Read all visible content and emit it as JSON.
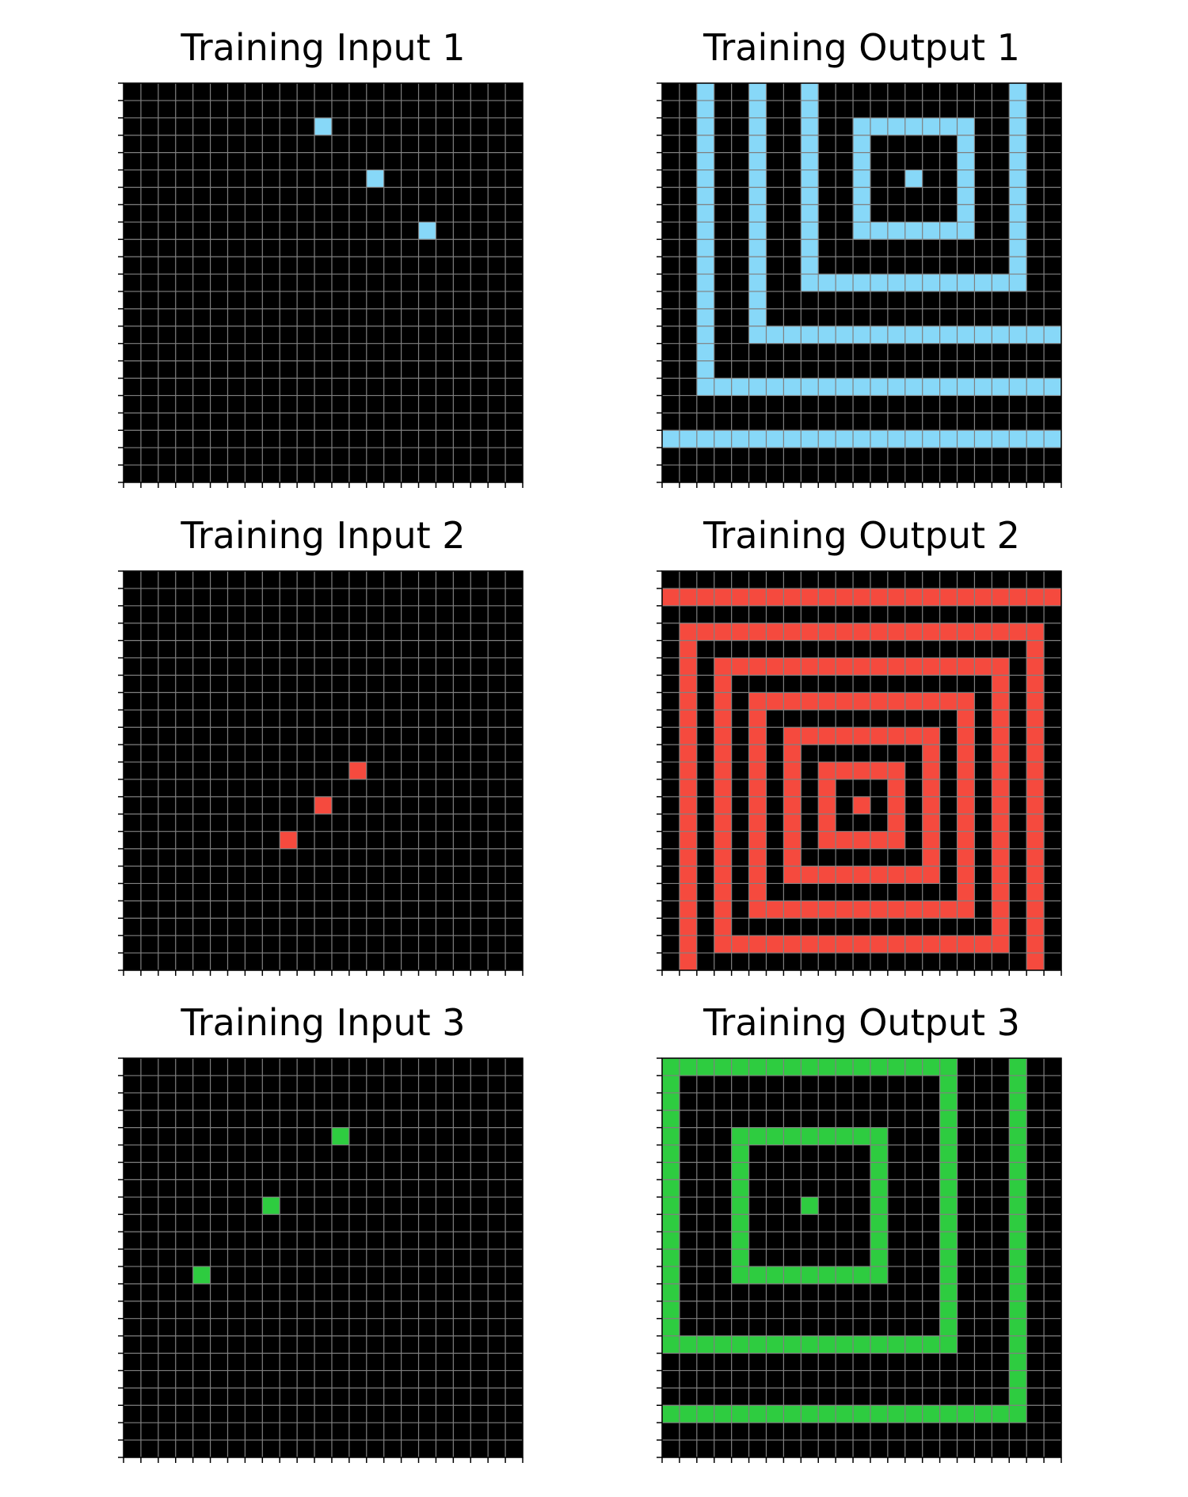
{
  "colors": {
    "background": "#000000",
    "gridline": "#808080",
    "cyan": "#87D8F8",
    "red": "#F54A3E",
    "green": "#2ECC40"
  },
  "panels": [
    {
      "title": "Training Input 1",
      "size": 23,
      "color": "cyan",
      "cells": [
        [
          2,
          11
        ],
        [
          5,
          14
        ],
        [
          8,
          17
        ]
      ]
    },
    {
      "title": "Training Output 1",
      "size": 23,
      "color": "cyan",
      "cells": [
        [
          0,
          2
        ],
        [
          0,
          5
        ],
        [
          0,
          8
        ],
        [
          0,
          20
        ],
        [
          1,
          2
        ],
        [
          1,
          5
        ],
        [
          1,
          8
        ],
        [
          1,
          20
        ],
        [
          2,
          2
        ],
        [
          2,
          5
        ],
        [
          2,
          8
        ],
        [
          2,
          11
        ],
        [
          2,
          12
        ],
        [
          2,
          13
        ],
        [
          2,
          14
        ],
        [
          2,
          15
        ],
        [
          2,
          16
        ],
        [
          2,
          17
        ],
        [
          2,
          20
        ],
        [
          3,
          2
        ],
        [
          3,
          5
        ],
        [
          3,
          8
        ],
        [
          3,
          11
        ],
        [
          3,
          17
        ],
        [
          3,
          20
        ],
        [
          4,
          2
        ],
        [
          4,
          5
        ],
        [
          4,
          8
        ],
        [
          4,
          11
        ],
        [
          4,
          17
        ],
        [
          4,
          20
        ],
        [
          5,
          2
        ],
        [
          5,
          5
        ],
        [
          5,
          8
        ],
        [
          5,
          11
        ],
        [
          5,
          14
        ],
        [
          5,
          17
        ],
        [
          5,
          20
        ],
        [
          6,
          2
        ],
        [
          6,
          5
        ],
        [
          6,
          8
        ],
        [
          6,
          11
        ],
        [
          6,
          17
        ],
        [
          6,
          20
        ],
        [
          7,
          2
        ],
        [
          7,
          5
        ],
        [
          7,
          8
        ],
        [
          7,
          11
        ],
        [
          7,
          17
        ],
        [
          7,
          20
        ],
        [
          8,
          2
        ],
        [
          8,
          5
        ],
        [
          8,
          8
        ],
        [
          8,
          11
        ],
        [
          8,
          12
        ],
        [
          8,
          13
        ],
        [
          8,
          14
        ],
        [
          8,
          15
        ],
        [
          8,
          16
        ],
        [
          8,
          17
        ],
        [
          8,
          20
        ],
        [
          9,
          2
        ],
        [
          9,
          5
        ],
        [
          9,
          8
        ],
        [
          9,
          20
        ],
        [
          10,
          2
        ],
        [
          10,
          5
        ],
        [
          10,
          8
        ],
        [
          10,
          20
        ],
        [
          11,
          2
        ],
        [
          11,
          5
        ],
        [
          11,
          8
        ],
        [
          11,
          9
        ],
        [
          11,
          10
        ],
        [
          11,
          11
        ],
        [
          11,
          12
        ],
        [
          11,
          13
        ],
        [
          11,
          14
        ],
        [
          11,
          15
        ],
        [
          11,
          16
        ],
        [
          11,
          17
        ],
        [
          11,
          18
        ],
        [
          11,
          19
        ],
        [
          11,
          20
        ],
        [
          12,
          2
        ],
        [
          12,
          5
        ],
        [
          13,
          2
        ],
        [
          13,
          5
        ],
        [
          14,
          2
        ],
        [
          14,
          5
        ],
        [
          14,
          6
        ],
        [
          14,
          7
        ],
        [
          14,
          8
        ],
        [
          14,
          9
        ],
        [
          14,
          10
        ],
        [
          14,
          11
        ],
        [
          14,
          12
        ],
        [
          14,
          13
        ],
        [
          14,
          14
        ],
        [
          14,
          15
        ],
        [
          14,
          16
        ],
        [
          14,
          17
        ],
        [
          14,
          18
        ],
        [
          14,
          19
        ],
        [
          14,
          20
        ],
        [
          14,
          21
        ],
        [
          14,
          22
        ],
        [
          15,
          2
        ],
        [
          16,
          2
        ],
        [
          17,
          2
        ],
        [
          17,
          3
        ],
        [
          17,
          4
        ],
        [
          17,
          5
        ],
        [
          17,
          6
        ],
        [
          17,
          7
        ],
        [
          17,
          8
        ],
        [
          17,
          9
        ],
        [
          17,
          10
        ],
        [
          17,
          11
        ],
        [
          17,
          12
        ],
        [
          17,
          13
        ],
        [
          17,
          14
        ],
        [
          17,
          15
        ],
        [
          17,
          16
        ],
        [
          17,
          17
        ],
        [
          17,
          18
        ],
        [
          17,
          19
        ],
        [
          17,
          20
        ],
        [
          17,
          21
        ],
        [
          17,
          22
        ],
        [
          20,
          0
        ],
        [
          20,
          1
        ],
        [
          20,
          2
        ],
        [
          20,
          3
        ],
        [
          20,
          4
        ],
        [
          20,
          5
        ],
        [
          20,
          6
        ],
        [
          20,
          7
        ],
        [
          20,
          8
        ],
        [
          20,
          9
        ],
        [
          20,
          10
        ],
        [
          20,
          11
        ],
        [
          20,
          12
        ],
        [
          20,
          13
        ],
        [
          20,
          14
        ],
        [
          20,
          15
        ],
        [
          20,
          16
        ],
        [
          20,
          17
        ],
        [
          20,
          18
        ],
        [
          20,
          19
        ],
        [
          20,
          20
        ],
        [
          20,
          21
        ],
        [
          20,
          22
        ]
      ]
    },
    {
      "title": "Training Input 2",
      "size": 23,
      "color": "red",
      "cells": [
        [
          11,
          13
        ],
        [
          13,
          11
        ],
        [
          15,
          9
        ]
      ]
    },
    {
      "title": "Training Output 2",
      "size": 23,
      "color": "red",
      "ring_center": [
        13,
        11
      ],
      "ring_radii": [
        2,
        4,
        6,
        8,
        10
      ],
      "extra_cells": [
        [
          13,
          11
        ],
        [
          1,
          0
        ],
        [
          1,
          1
        ],
        [
          1,
          2
        ],
        [
          1,
          3
        ],
        [
          1,
          4
        ],
        [
          1,
          5
        ],
        [
          1,
          6
        ],
        [
          1,
          7
        ],
        [
          1,
          8
        ],
        [
          1,
          9
        ],
        [
          1,
          10
        ],
        [
          1,
          11
        ],
        [
          1,
          12
        ],
        [
          1,
          13
        ],
        [
          1,
          14
        ],
        [
          1,
          15
        ],
        [
          1,
          16
        ],
        [
          1,
          17
        ],
        [
          1,
          18
        ],
        [
          1,
          19
        ],
        [
          1,
          20
        ],
        [
          1,
          21
        ],
        [
          1,
          22
        ],
        [
          3,
          1
        ],
        [
          3,
          2
        ],
        [
          3,
          3
        ],
        [
          3,
          4
        ],
        [
          3,
          5
        ],
        [
          3,
          6
        ],
        [
          3,
          7
        ],
        [
          3,
          8
        ],
        [
          3,
          9
        ],
        [
          3,
          10
        ],
        [
          3,
          11
        ],
        [
          3,
          12
        ],
        [
          3,
          13
        ],
        [
          3,
          14
        ],
        [
          3,
          15
        ],
        [
          3,
          16
        ],
        [
          3,
          17
        ],
        [
          3,
          18
        ],
        [
          3,
          19
        ],
        [
          3,
          20
        ],
        [
          3,
          21
        ],
        [
          4,
          1
        ],
        [
          4,
          21
        ],
        [
          5,
          1
        ],
        [
          5,
          21
        ],
        [
          6,
          1
        ],
        [
          6,
          21
        ],
        [
          7,
          1
        ],
        [
          7,
          21
        ],
        [
          8,
          1
        ],
        [
          8,
          21
        ],
        [
          9,
          1
        ],
        [
          9,
          21
        ],
        [
          10,
          1
        ],
        [
          10,
          21
        ],
        [
          11,
          1
        ],
        [
          11,
          21
        ],
        [
          12,
          1
        ],
        [
          12,
          21
        ],
        [
          13,
          1
        ],
        [
          13,
          21
        ],
        [
          14,
          1
        ],
        [
          14,
          21
        ],
        [
          15,
          1
        ],
        [
          15,
          21
        ],
        [
          16,
          1
        ],
        [
          16,
          21
        ],
        [
          17,
          1
        ],
        [
          17,
          21
        ],
        [
          18,
          1
        ],
        [
          18,
          21
        ],
        [
          19,
          1
        ],
        [
          19,
          21
        ],
        [
          20,
          1
        ],
        [
          20,
          21
        ],
        [
          21,
          1
        ],
        [
          21,
          21
        ],
        [
          22,
          1
        ],
        [
          22,
          21
        ]
      ]
    },
    {
      "title": "Training Input 3",
      "size": 23,
      "color": "green",
      "cells": [
        [
          4,
          12
        ],
        [
          8,
          8
        ],
        [
          12,
          4
        ]
      ]
    },
    {
      "title": "Training Output 3",
      "size": 23,
      "color": "green",
      "ring_center": [
        8,
        8
      ],
      "ring_radii": [
        4,
        8
      ],
      "extra_cells": [
        [
          8,
          8
        ],
        [
          0,
          20
        ],
        [
          1,
          20
        ],
        [
          2,
          20
        ],
        [
          3,
          20
        ],
        [
          4,
          20
        ],
        [
          5,
          20
        ],
        [
          6,
          20
        ],
        [
          7,
          20
        ],
        [
          8,
          20
        ],
        [
          9,
          20
        ],
        [
          10,
          20
        ],
        [
          11,
          20
        ],
        [
          12,
          20
        ],
        [
          13,
          20
        ],
        [
          14,
          20
        ],
        [
          15,
          20
        ],
        [
          16,
          20
        ],
        [
          17,
          20
        ],
        [
          18,
          20
        ],
        [
          19,
          20
        ],
        [
          20,
          20
        ],
        [
          20,
          0
        ],
        [
          20,
          1
        ],
        [
          20,
          2
        ],
        [
          20,
          3
        ],
        [
          20,
          4
        ],
        [
          20,
          5
        ],
        [
          20,
          6
        ],
        [
          20,
          7
        ],
        [
          20,
          8
        ],
        [
          20,
          9
        ],
        [
          20,
          10
        ],
        [
          20,
          11
        ],
        [
          20,
          12
        ],
        [
          20,
          13
        ],
        [
          20,
          14
        ],
        [
          20,
          15
        ],
        [
          20,
          16
        ],
        [
          20,
          17
        ],
        [
          20,
          18
        ],
        [
          20,
          19
        ]
      ]
    }
  ]
}
